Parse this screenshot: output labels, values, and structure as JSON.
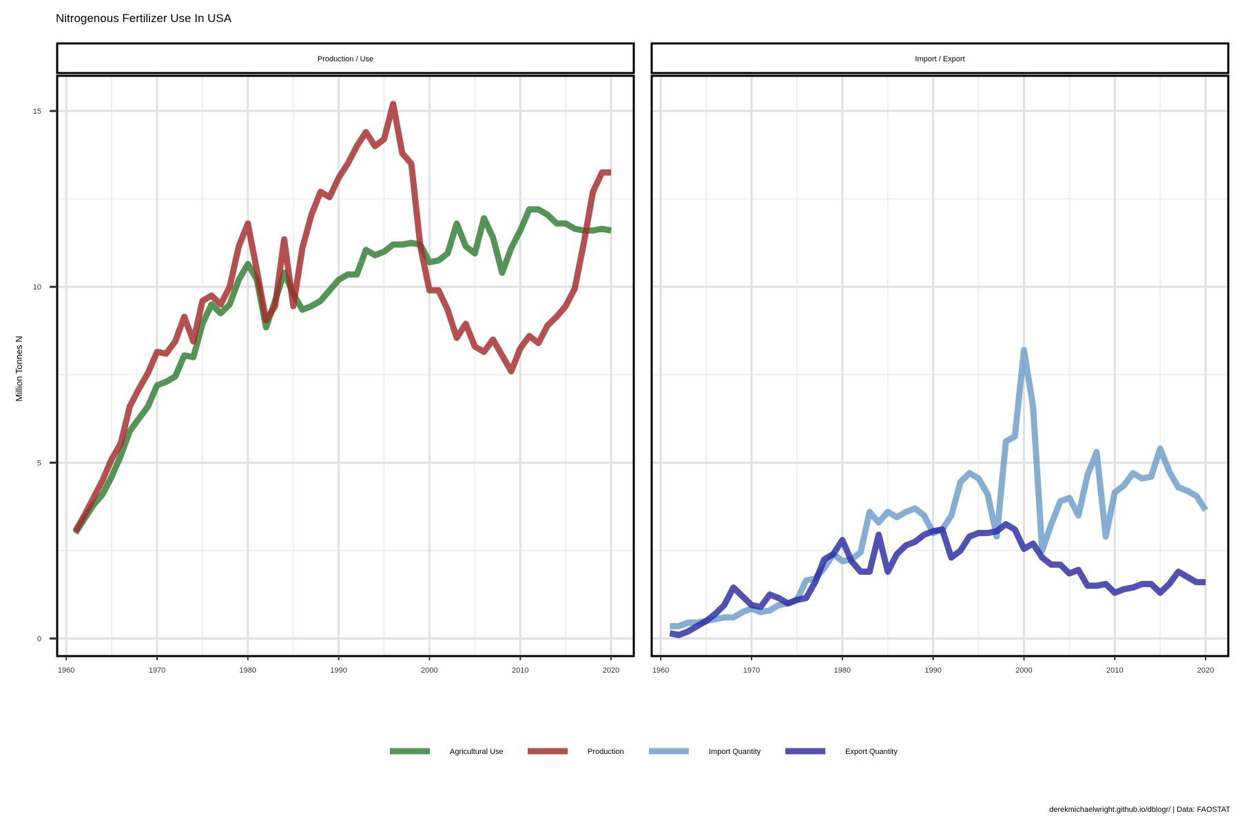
{
  "chart_data": {
    "type": "line",
    "title": "Nitrogenous Fertilizer Use In USA",
    "ylabel": "Million Tonnes N",
    "xlabel": "",
    "caption": "derekmichaelwright.github.io/dblogr/ | Data: FAOSTAT",
    "xlim": [
      1959,
      2022.5
    ],
    "ylim": [
      -0.5,
      16
    ],
    "x_ticks": [
      1960,
      1970,
      1980,
      1990,
      2000,
      2010,
      2020
    ],
    "y_ticks": [
      0,
      5,
      10,
      15
    ],
    "grid": true,
    "legend_position": "bottom",
    "legend": [
      {
        "name": "Agricultural Use",
        "color": "#2e7d32"
      },
      {
        "name": "Production",
        "color": "#a52a2a"
      },
      {
        "name": "Import Quantity",
        "color": "#6b9bc8"
      },
      {
        "name": "Export Quantity",
        "color": "#2b2ba3"
      }
    ],
    "panels": [
      {
        "title": "Production / Use",
        "series": [
          {
            "name": "Agricultural Use",
            "color": "#2e7d32",
            "x": [
              1961,
              1962,
              1963,
              1964,
              1965,
              1966,
              1967,
              1968,
              1969,
              1970,
              1971,
              1972,
              1973,
              1974,
              1975,
              1976,
              1977,
              1978,
              1979,
              1980,
              1981,
              1982,
              1983,
              1984,
              1985,
              1986,
              1987,
              1988,
              1989,
              1990,
              1991,
              1992,
              1993,
              1994,
              1995,
              1996,
              1997,
              1998,
              1999,
              2000,
              2001,
              2002,
              2003,
              2004,
              2005,
              2006,
              2007,
              2008,
              2009,
              2010,
              2011,
              2012,
              2013,
              2014,
              2015,
              2016,
              2017,
              2018,
              2019,
              2020
            ],
            "values": [
              3.0,
              3.4,
              3.8,
              4.1,
              4.6,
              5.2,
              5.9,
              6.25,
              6.6,
              7.2,
              7.3,
              7.45,
              8.05,
              8.0,
              8.95,
              9.5,
              9.25,
              9.5,
              10.2,
              10.65,
              10.2,
              8.85,
              9.6,
              10.4,
              9.8,
              9.35,
              9.45,
              9.6,
              9.9,
              10.2,
              10.35,
              10.35,
              11.05,
              10.9,
              11.0,
              11.2,
              11.2,
              11.25,
              11.2,
              10.7,
              10.75,
              10.95,
              11.8,
              11.15,
              10.95,
              11.95,
              11.4,
              10.4,
              11.1,
              11.6,
              12.2,
              12.2,
              12.05,
              11.8,
              11.8,
              11.65,
              11.6,
              11.6,
              11.65,
              11.6
            ]
          },
          {
            "name": "Production",
            "color": "#a52a2a",
            "x": [
              1961,
              1962,
              1963,
              1964,
              1965,
              1966,
              1967,
              1968,
              1969,
              1970,
              1971,
              1972,
              1973,
              1974,
              1975,
              1976,
              1977,
              1978,
              1979,
              1980,
              1981,
              1982,
              1983,
              1984,
              1985,
              1986,
              1987,
              1988,
              1989,
              1990,
              1991,
              1992,
              1993,
              1994,
              1995,
              1996,
              1997,
              1998,
              1999,
              2000,
              2001,
              2002,
              2003,
              2004,
              2005,
              2006,
              2007,
              2008,
              2009,
              2010,
              2011,
              2012,
              2013,
              2014,
              2015,
              2016,
              2017,
              2018,
              2019,
              2020
            ],
            "values": [
              3.05,
              3.5,
              4.0,
              4.5,
              5.1,
              5.55,
              6.6,
              7.1,
              7.55,
              8.15,
              8.1,
              8.45,
              9.15,
              8.45,
              9.6,
              9.75,
              9.5,
              10.0,
              11.15,
              11.8,
              10.45,
              9.05,
              9.45,
              11.35,
              9.45,
              11.1,
              12.05,
              12.7,
              12.55,
              13.1,
              13.5,
              14.0,
              14.4,
              14.0,
              14.2,
              15.2,
              13.8,
              13.5,
              11.15,
              9.9,
              9.9,
              9.35,
              8.55,
              8.95,
              8.3,
              8.15,
              8.5,
              8.05,
              7.6,
              8.25,
              8.6,
              8.4,
              8.9,
              9.15,
              9.45,
              9.95,
              11.25,
              12.7,
              13.25,
              13.25
            ]
          }
        ]
      },
      {
        "title": "Import / Export",
        "series": [
          {
            "name": "Import Quantity",
            "color": "#6b9bc8",
            "x": [
              1961,
              1962,
              1963,
              1964,
              1965,
              1966,
              1967,
              1968,
              1969,
              1970,
              1971,
              1972,
              1973,
              1974,
              1975,
              1976,
              1977,
              1978,
              1979,
              1980,
              1981,
              1982,
              1983,
              1984,
              1985,
              1986,
              1987,
              1988,
              1989,
              1990,
              1991,
              1992,
              1993,
              1994,
              1995,
              1996,
              1997,
              1998,
              1999,
              2000,
              2001,
              2002,
              2003,
              2004,
              2005,
              2006,
              2007,
              2008,
              2009,
              2010,
              2011,
              2012,
              2013,
              2014,
              2015,
              2016,
              2017,
              2018,
              2019,
              2020
            ],
            "values": [
              0.35,
              0.35,
              0.45,
              0.45,
              0.5,
              0.55,
              0.6,
              0.6,
              0.75,
              0.85,
              0.75,
              0.8,
              0.95,
              1.0,
              1.1,
              1.65,
              1.7,
              2.0,
              2.4,
              2.2,
              2.25,
              2.45,
              3.6,
              3.3,
              3.6,
              3.45,
              3.6,
              3.7,
              3.5,
              3.0,
              3.1,
              3.5,
              4.45,
              4.7,
              4.55,
              4.1,
              2.9,
              5.6,
              5.75,
              8.2,
              6.6,
              2.5,
              3.25,
              3.9,
              4.0,
              3.5,
              4.65,
              5.3,
              2.9,
              4.15,
              4.35,
              4.7,
              4.55,
              4.6,
              5.4,
              4.75,
              4.3,
              4.2,
              4.05,
              3.65
            ]
          },
          {
            "name": "Export Quantity",
            "color": "#2b2ba3",
            "x": [
              1961,
              1962,
              1963,
              1964,
              1965,
              1966,
              1967,
              1968,
              1969,
              1970,
              1971,
              1972,
              1973,
              1974,
              1975,
              1976,
              1977,
              1978,
              1979,
              1980,
              1981,
              1982,
              1983,
              1984,
              1985,
              1986,
              1987,
              1988,
              1989,
              1990,
              1991,
              1992,
              1993,
              1994,
              1995,
              1996,
              1997,
              1998,
              1999,
              2000,
              2001,
              2002,
              2003,
              2004,
              2005,
              2006,
              2007,
              2008,
              2009,
              2010,
              2011,
              2012,
              2013,
              2014,
              2015,
              2016,
              2017,
              2018,
              2019,
              2020
            ],
            "values": [
              0.15,
              0.1,
              0.2,
              0.35,
              0.5,
              0.7,
              0.95,
              1.45,
              1.2,
              0.95,
              0.9,
              1.25,
              1.15,
              1.0,
              1.1,
              1.15,
              1.6,
              2.25,
              2.4,
              2.8,
              2.2,
              1.9,
              1.9,
              2.95,
              1.9,
              2.4,
              2.65,
              2.75,
              2.95,
              3.05,
              3.1,
              2.3,
              2.5,
              2.9,
              3.0,
              3.0,
              3.05,
              3.25,
              3.1,
              2.55,
              2.7,
              2.3,
              2.1,
              2.1,
              1.85,
              1.95,
              1.5,
              1.5,
              1.55,
              1.3,
              1.4,
              1.45,
              1.55,
              1.55,
              1.3,
              1.55,
              1.9,
              1.75,
              1.6,
              1.6
            ]
          }
        ]
      }
    ]
  }
}
